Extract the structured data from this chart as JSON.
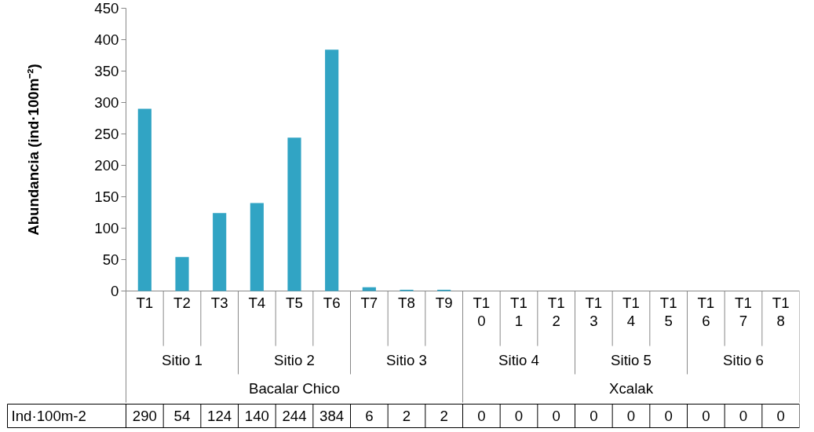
{
  "chart_data": {
    "type": "bar",
    "ylabel": "Abundancia (ind·100m⁻²)",
    "categories": [
      "T1",
      "T2",
      "T3",
      "T4",
      "T5",
      "T6",
      "T7",
      "T8",
      "T9",
      "T10",
      "T11",
      "T12",
      "T13",
      "T14",
      "T15",
      "T16",
      "T17",
      "T18"
    ],
    "series": [
      {
        "name": "Ind·100m-2",
        "color": "#31a4c4",
        "values": [
          290,
          54,
          124,
          140,
          244,
          384,
          6,
          2,
          2,
          0,
          0,
          0,
          0,
          0,
          0,
          0,
          0,
          0
        ]
      }
    ],
    "ylim": [
      0,
      450
    ],
    "yticks": [
      0,
      50,
      100,
      150,
      200,
      250,
      300,
      350,
      400,
      450
    ],
    "grid": false,
    "legend": false,
    "data_labels": true,
    "annotations": [
      "Sitio 1",
      "Sitio 2",
      "Sitio 3",
      "Sitio 4",
      "Sitio 5",
      "Sitio 6",
      "Bacalar Chico",
      "Xcalak"
    ]
  }
}
